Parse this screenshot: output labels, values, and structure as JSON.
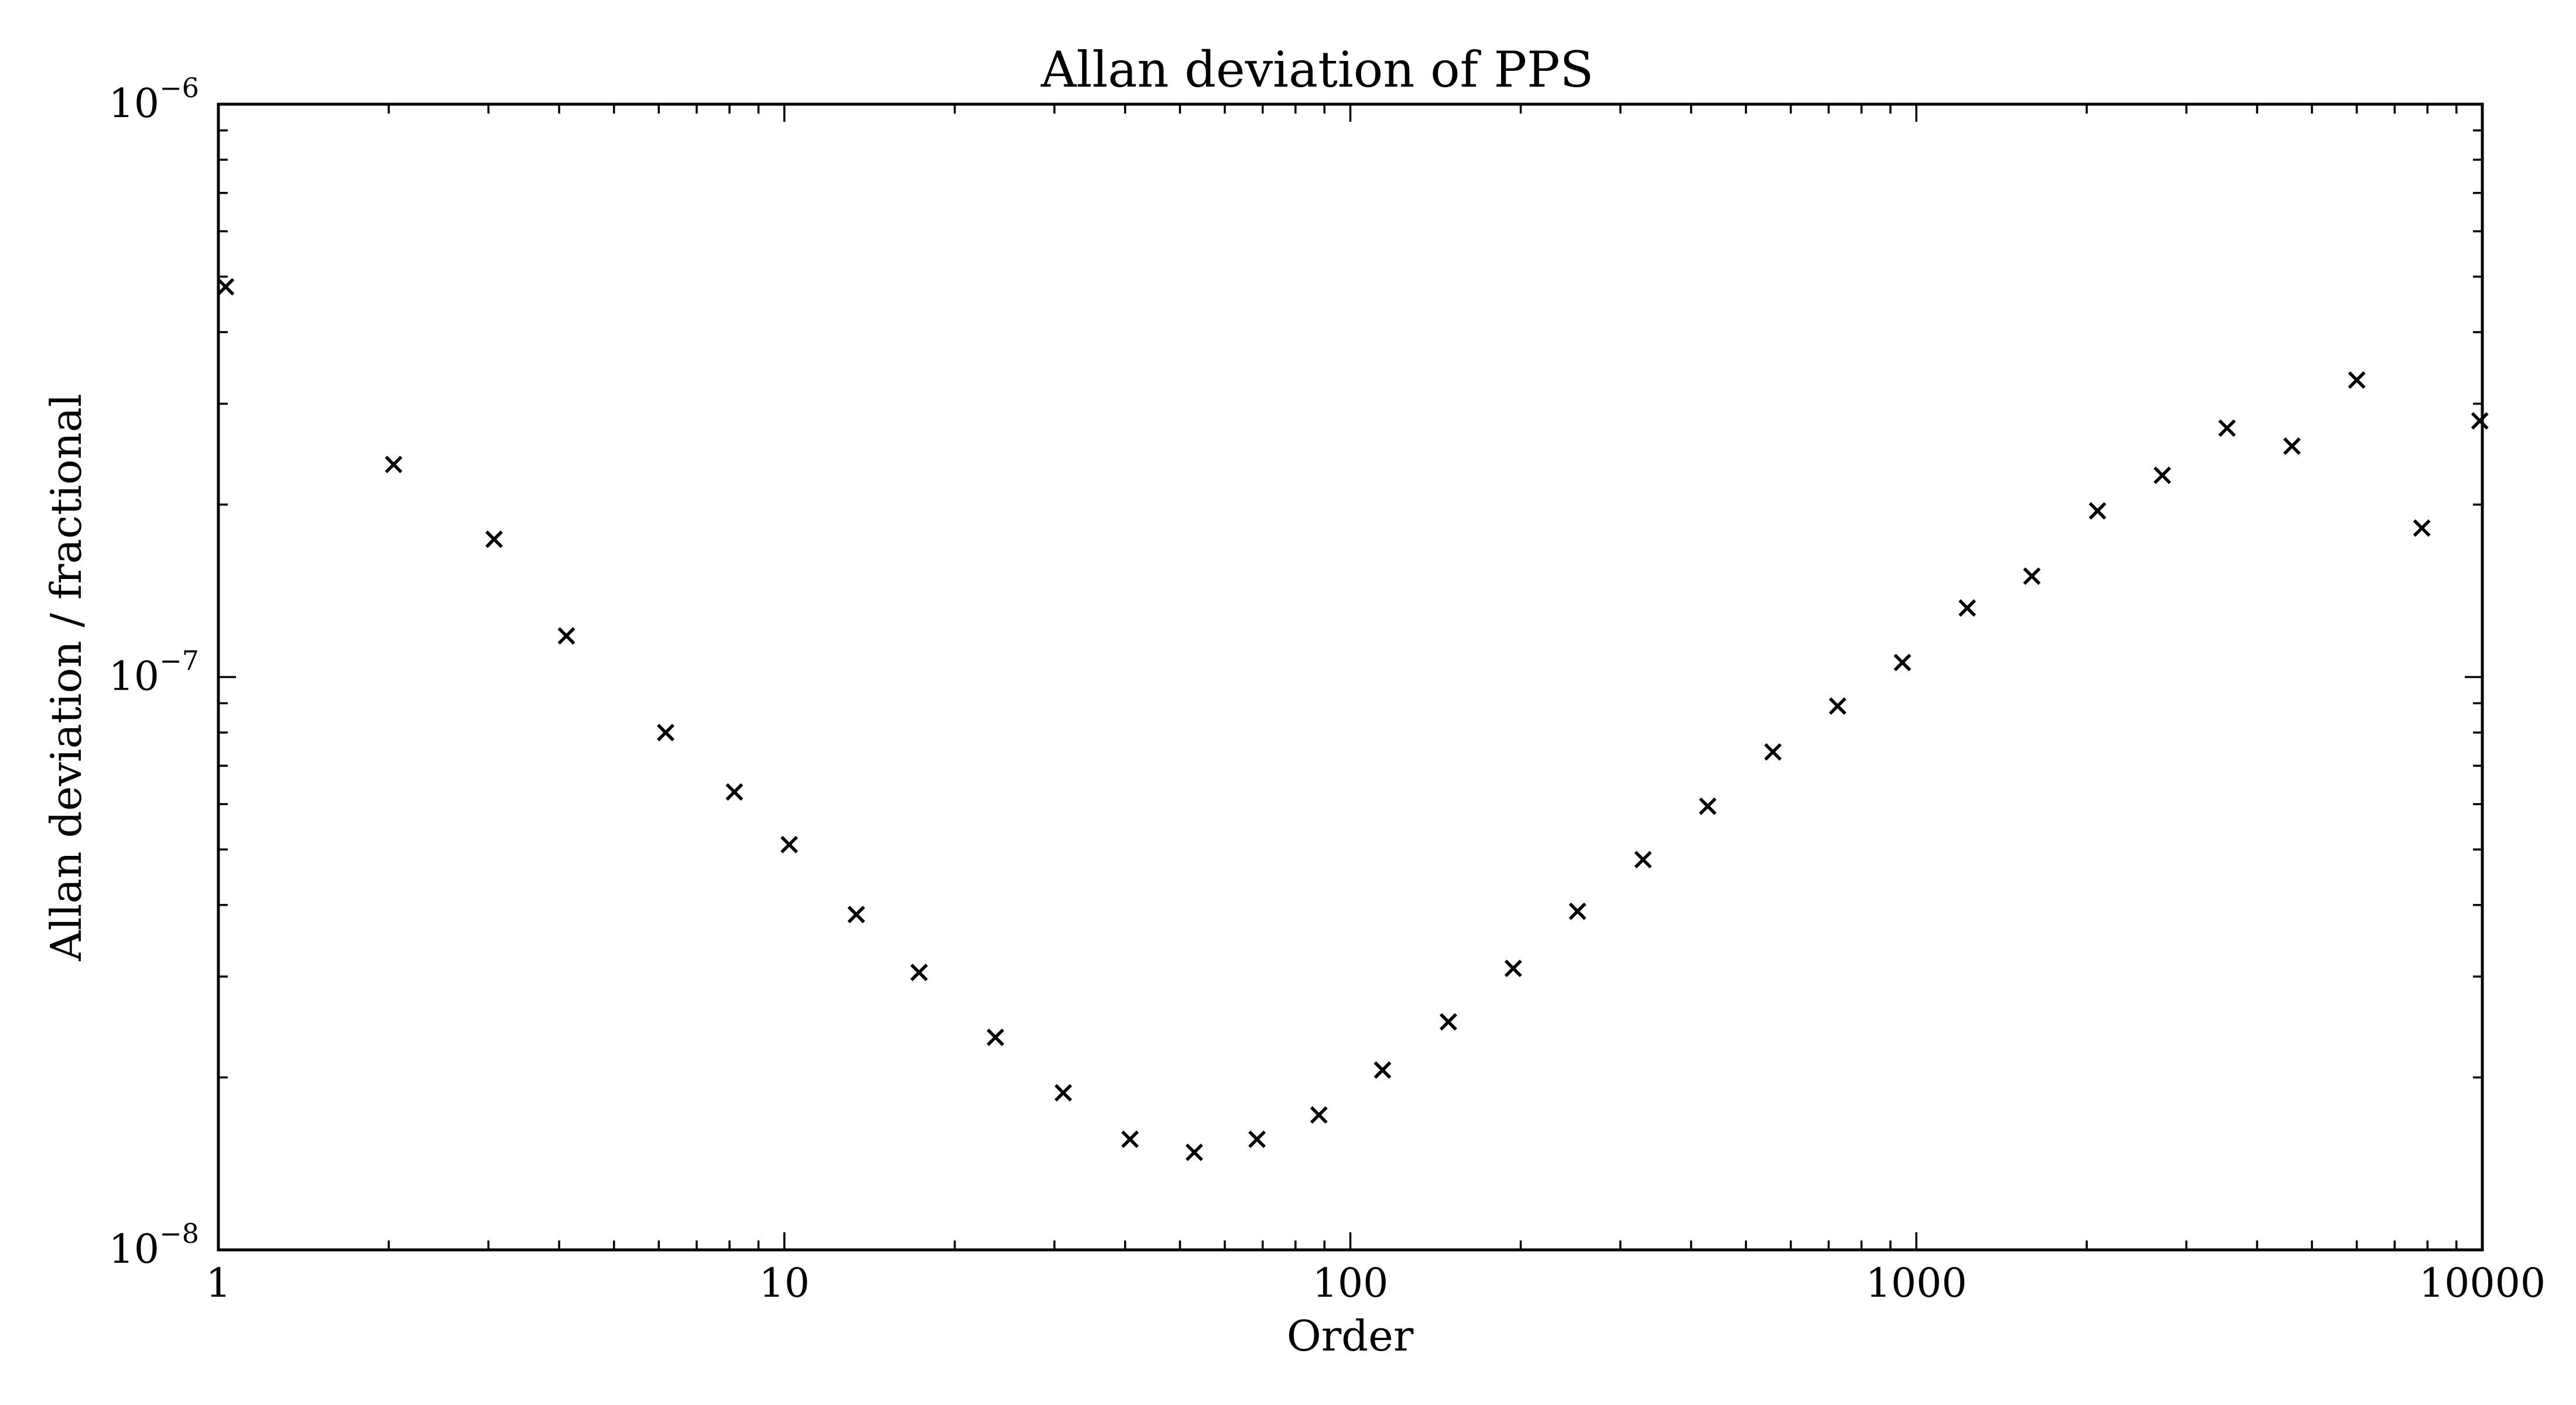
{
  "chart_data": {
    "type": "scatter",
    "title": "Allan deviation of PPS",
    "xlabel": "Order",
    "ylabel": "Allan deviation / fractional",
    "xscale": "log",
    "yscale": "log",
    "xlim": [
      1,
      10000
    ],
    "ylim": [
      1e-08,
      1e-06
    ],
    "grid": false,
    "marker": "x",
    "x_ticks": [
      "1",
      "10",
      "100",
      "1000",
      "10000"
    ],
    "y_ticks": [
      {
        "base": "10",
        "exp": "−8"
      },
      {
        "base": "10",
        "exp": "−7"
      },
      {
        "base": "10",
        "exp": "−6"
      }
    ],
    "series": [
      {
        "color": "#000000",
        "points": [
          {
            "x": 1.03,
            "y": 4.8e-07
          },
          {
            "x": 2.04,
            "y": 2.35e-07
          },
          {
            "x": 3.07,
            "y": 1.74e-07
          },
          {
            "x": 4.12,
            "y": 1.18e-07
          },
          {
            "x": 6.17,
            "y": 8e-08
          },
          {
            "x": 8.16,
            "y": 6.3e-08
          },
          {
            "x": 10.2,
            "y": 5.1e-08
          },
          {
            "x": 13.4,
            "y": 3.85e-08
          },
          {
            "x": 17.3,
            "y": 3.05e-08
          },
          {
            "x": 23.6,
            "y": 2.35e-08
          },
          {
            "x": 31.1,
            "y": 1.88e-08
          },
          {
            "x": 40.8,
            "y": 1.56e-08
          },
          {
            "x": 53.0,
            "y": 1.48e-08
          },
          {
            "x": 68.4,
            "y": 1.56e-08
          },
          {
            "x": 88.0,
            "y": 1.72e-08
          },
          {
            "x": 114.0,
            "y": 2.06e-08
          },
          {
            "x": 149.0,
            "y": 2.5e-08
          },
          {
            "x": 194.0,
            "y": 3.1e-08
          },
          {
            "x": 252.0,
            "y": 3.9e-08
          },
          {
            "x": 329.0,
            "y": 4.8e-08
          },
          {
            "x": 428.0,
            "y": 5.95e-08
          },
          {
            "x": 558.0,
            "y": 7.4e-08
          },
          {
            "x": 726.0,
            "y": 8.9e-08
          },
          {
            "x": 945.0,
            "y": 1.06e-07
          },
          {
            "x": 1230.0,
            "y": 1.32e-07
          },
          {
            "x": 1600.0,
            "y": 1.5e-07
          },
          {
            "x": 2090.0,
            "y": 1.95e-07
          },
          {
            "x": 2720.0,
            "y": 2.25e-07
          },
          {
            "x": 3540.0,
            "y": 2.72e-07
          },
          {
            "x": 4610.0,
            "y": 2.53e-07
          },
          {
            "x": 6000.0,
            "y": 3.3e-07
          },
          {
            "x": 7820.0,
            "y": 1.82e-07
          },
          {
            "x": 9900.0,
            "y": 2.8e-07
          }
        ]
      }
    ]
  }
}
